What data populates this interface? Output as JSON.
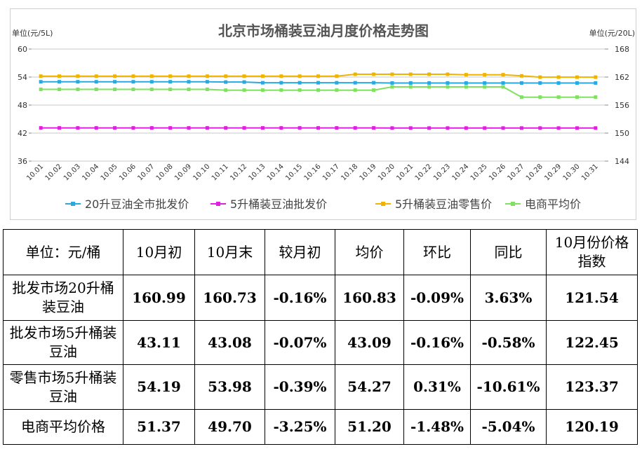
{
  "chart_data": {
    "type": "line",
    "title": "北京市场桶装豆油月度价格走势图",
    "ylabel_left": "单位(元/5L)",
    "ylabel_right": "单位(元/20L)",
    "left_axis": {
      "min": 36,
      "max": 60,
      "ticks": [
        36,
        42,
        48,
        54,
        60
      ]
    },
    "right_axis": {
      "min": 144,
      "max": 168,
      "ticks": [
        144,
        150,
        156,
        162,
        168
      ]
    },
    "x": [
      "10.01",
      "10.02",
      "10.03",
      "10.04",
      "10.05",
      "10.06",
      "10.07",
      "10.08",
      "10.09",
      "10.10",
      "10.11",
      "10.12",
      "10.13",
      "10.14",
      "10.15",
      "10.16",
      "10.17",
      "10.18",
      "10.19",
      "10.20",
      "10.21",
      "10.22",
      "10.23",
      "10.24",
      "10.25",
      "10.26",
      "10.27",
      "10.28",
      "10.29",
      "10.30",
      "10.31"
    ],
    "series": [
      {
        "name": "20升豆油全市批发价",
        "axis": "right",
        "color": "#2aa8e0",
        "values": [
          160.99,
          160.99,
          160.99,
          160.99,
          160.99,
          160.99,
          160.99,
          160.99,
          160.99,
          160.99,
          160.93,
          160.93,
          160.78,
          160.78,
          160.78,
          160.78,
          160.78,
          160.78,
          160.78,
          160.73,
          160.73,
          160.73,
          160.73,
          160.73,
          160.73,
          160.73,
          160.73,
          160.73,
          160.73,
          160.73,
          160.73
        ]
      },
      {
        "name": "5升桶装豆油批发价",
        "axis": "left",
        "color": "#e020e0",
        "values": [
          43.11,
          43.11,
          43.11,
          43.11,
          43.11,
          43.11,
          43.11,
          43.11,
          43.11,
          43.11,
          43.11,
          43.11,
          43.11,
          43.11,
          43.11,
          43.11,
          43.11,
          43.11,
          43.11,
          43.08,
          43.08,
          43.08,
          43.08,
          43.08,
          43.08,
          43.08,
          43.08,
          43.08,
          43.08,
          43.08,
          43.08
        ]
      },
      {
        "name": "5升桶装豆油零售价",
        "axis": "left",
        "color": "#f0b400",
        "values": [
          54.19,
          54.19,
          54.19,
          54.19,
          54.19,
          54.19,
          54.19,
          54.19,
          54.19,
          54.19,
          54.19,
          54.19,
          54.19,
          54.19,
          54.19,
          54.19,
          54.19,
          54.6,
          54.6,
          54.6,
          54.6,
          54.6,
          54.6,
          54.5,
          54.5,
          54.5,
          54.25,
          53.98,
          53.98,
          53.98,
          53.98
        ]
      },
      {
        "name": "电商平均价",
        "axis": "left",
        "color": "#80e060",
        "values": [
          51.37,
          51.37,
          51.37,
          51.37,
          51.37,
          51.37,
          51.37,
          51.37,
          51.37,
          51.37,
          51.2,
          51.2,
          51.2,
          51.2,
          51.2,
          51.2,
          51.2,
          51.2,
          51.2,
          51.9,
          51.9,
          51.9,
          51.9,
          51.9,
          51.9,
          51.9,
          49.7,
          49.7,
          49.7,
          49.7,
          49.7
        ]
      }
    ],
    "grid": false,
    "legend": "bottom"
  },
  "table": {
    "header": [
      "单位：元/桶",
      "10月初",
      "10月末",
      "较月初",
      "均价",
      "环比",
      "同比",
      "10月份价格指数"
    ],
    "rows": [
      {
        "label": "批发市场20升桶装豆油",
        "cells": [
          "160.99",
          "160.73",
          "-0.16%",
          "160.83",
          "-0.09%",
          "3.63%",
          "121.54"
        ]
      },
      {
        "label": "批发市场5升桶装豆油",
        "cells": [
          "43.11",
          "43.08",
          "-0.07%",
          "43.09",
          "-0.16%",
          "-0.58%",
          "122.45"
        ]
      },
      {
        "label": "零售市场5升桶装豆油",
        "cells": [
          "54.19",
          "53.98",
          "-0.39%",
          "54.27",
          "0.31%",
          "-10.61%",
          "123.37"
        ]
      },
      {
        "label": "电商平均价格",
        "cells": [
          "51.37",
          "49.70",
          "-3.25%",
          "51.20",
          "-1.48%",
          "-5.04%",
          "120.19"
        ]
      }
    ]
  }
}
